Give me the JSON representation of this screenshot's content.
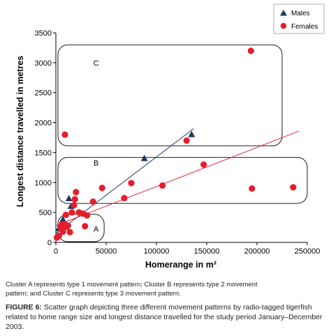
{
  "chart_data": {
    "type": "scatter",
    "xlabel": "Homerange in m²",
    "ylabel": "Longest distance travelled in metres",
    "xlim": [
      0,
      250000
    ],
    "ylim": [
      0,
      3500
    ],
    "x_ticks": [
      0,
      50000,
      100000,
      150000,
      200000,
      250000
    ],
    "y_ticks": [
      0,
      500,
      1000,
      1500,
      2000,
      2500,
      3000,
      3500
    ],
    "x_tick_labels": [
      "0",
      "50000",
      "100000",
      "150000",
      "200000",
      "250000"
    ],
    "y_tick_labels": [
      "0",
      "500",
      "1000",
      "1500",
      "2000",
      "2500",
      "3000",
      "3500"
    ],
    "grid": false,
    "legend_position": "top-right",
    "series": [
      {
        "name": "Males",
        "marker": "triangle",
        "color": "#1f3864",
        "points": [
          [
            3000,
            230
          ],
          [
            7000,
            380
          ],
          [
            13000,
            730
          ],
          [
            15000,
            600
          ],
          [
            88000,
            1400
          ],
          [
            135000,
            1800
          ]
        ],
        "trendline": [
          [
            0,
            150
          ],
          [
            137000,
            1900
          ]
        ]
      },
      {
        "name": "Females",
        "marker": "circle",
        "color": "#e41e2b",
        "points": [
          [
            1000,
            80
          ],
          [
            3000,
            110
          ],
          [
            5000,
            230
          ],
          [
            6000,
            300
          ],
          [
            7000,
            180
          ],
          [
            8000,
            250
          ],
          [
            9000,
            300
          ],
          [
            10000,
            460
          ],
          [
            11000,
            260
          ],
          [
            12000,
            280
          ],
          [
            14000,
            170
          ],
          [
            16000,
            500
          ],
          [
            18000,
            620
          ],
          [
            19000,
            720
          ],
          [
            20000,
            840
          ],
          [
            23000,
            500
          ],
          [
            27000,
            480
          ],
          [
            29000,
            270
          ],
          [
            31000,
            450
          ],
          [
            37000,
            680
          ],
          [
            46000,
            910
          ],
          [
            68000,
            740
          ],
          [
            75000,
            990
          ],
          [
            106000,
            950
          ],
          [
            130000,
            1700
          ],
          [
            147000,
            1300
          ],
          [
            194000,
            3200
          ],
          [
            195000,
            900
          ],
          [
            236000,
            920
          ],
          [
            9000,
            1800
          ]
        ],
        "trendline": [
          [
            0,
            280
          ],
          [
            242000,
            1860
          ]
        ]
      }
    ],
    "annotations": [
      {
        "label": "A",
        "box": {
          "x": [
            0,
            48000
          ],
          "y": [
            0,
            470
          ]
        },
        "label_at": [
          40000,
          230
        ]
      },
      {
        "label": "B",
        "box": {
          "x": [
            0,
            250000
          ],
          "y": [
            640,
            1420
          ]
        },
        "label_at": [
          40000,
          1330
        ]
      },
      {
        "label": "C",
        "box": {
          "x": [
            0,
            225000
          ],
          "y": [
            1600,
            3300
          ]
        },
        "label_at": [
          40000,
          3000
        ]
      }
    ]
  },
  "caption": {
    "note_line1": "Cluster A represents type 1 movement pattern; Cluster B represents type 2 movement",
    "note_line2": "pattern; and Cluster C represents type 3 movement pattern.",
    "figure_label": "FIGURE 6:",
    "figure_text": " Scatter graph depicting three different movement patterns by radio-tagged tigerfish related to home range size and longest distance travelled for the study period January–December 2003."
  }
}
